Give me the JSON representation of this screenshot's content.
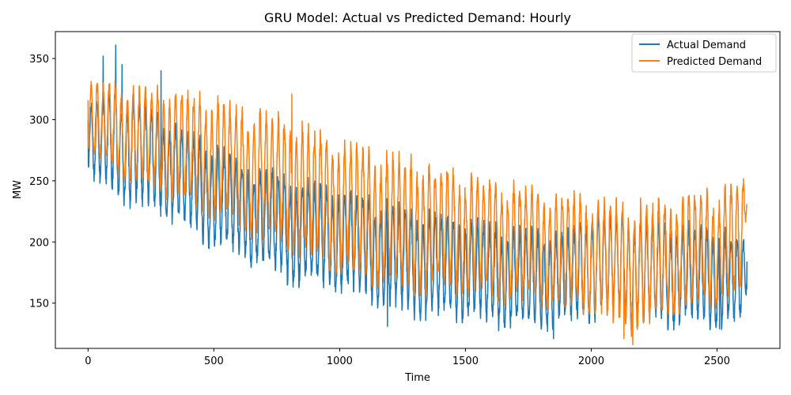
{
  "chart_data": {
    "type": "line",
    "title": "GRU Model: Actual vs Predicted Demand:  Hourly",
    "xlabel": "Time",
    "ylabel": "MW",
    "xlim": [
      -130,
      2750
    ],
    "ylim": [
      113,
      372
    ],
    "xticks": [
      0,
      500,
      1000,
      1500,
      2000,
      2500
    ],
    "yticks": [
      150,
      200,
      250,
      300,
      350
    ],
    "legend_position": "top-right",
    "series": [
      {
        "name": "Actual Demand",
        "color": "#1f77b4",
        "envelope": {
          "x": [
            0,
            100,
            200,
            300,
            400,
            500,
            600,
            700,
            800,
            900,
            1000,
            1100,
            1200,
            1300,
            1400,
            1500,
            1600,
            1700,
            1800,
            1900,
            2000,
            2100,
            2200,
            2300,
            2400,
            2500,
            2600,
            2619
          ],
          "hi": [
            314,
            330,
            318,
            305,
            290,
            282,
            268,
            262,
            255,
            250,
            245,
            238,
            232,
            228,
            225,
            222,
            216,
            212,
            210,
            208,
            228,
            226,
            222,
            218,
            215,
            212,
            205,
            200
          ],
          "lo": [
            252,
            238,
            228,
            222,
            210,
            196,
            188,
            178,
            168,
            162,
            160,
            155,
            145,
            140,
            138,
            138,
            132,
            130,
            130,
            132,
            138,
            140,
            132,
            132,
            132,
            132,
            132,
            160
          ]
        },
        "spikes": [
          {
            "x": 60,
            "y": 352
          },
          {
            "x": 110,
            "y": 361
          },
          {
            "x": 135,
            "y": 345
          },
          {
            "x": 290,
            "y": 340
          },
          {
            "x": 1190,
            "y": 131
          },
          {
            "x": 1850,
            "y": 121
          },
          {
            "x": 2510,
            "y": 129
          }
        ],
        "start": 300,
        "end": 184
      },
      {
        "name": "Predicted Demand",
        "color": "#ff7f0e",
        "envelope": {
          "x": [
            0,
            100,
            200,
            300,
            400,
            500,
            600,
            700,
            800,
            900,
            1000,
            1100,
            1200,
            1300,
            1400,
            1500,
            1600,
            1700,
            1800,
            1900,
            2000,
            2100,
            2200,
            2300,
            2400,
            2500,
            2600,
            2619
          ],
          "hi": [
            330,
            332,
            326,
            325,
            322,
            318,
            310,
            308,
            302,
            292,
            284,
            278,
            272,
            268,
            262,
            258,
            252,
            248,
            243,
            240,
            238,
            236,
            232,
            236,
            240,
            242,
            252,
            256
          ],
          "lo": [
            268,
            258,
            246,
            240,
            230,
            222,
            212,
            200,
            195,
            185,
            178,
            170,
            162,
            160,
            160,
            158,
            152,
            150,
            150,
            145,
            145,
            128,
            126,
            142,
            148,
            150,
            152,
            232
          ]
        },
        "spikes": [
          {
            "x": 810,
            "y": 321
          },
          {
            "x": 2130,
            "y": 121
          },
          {
            "x": 2165,
            "y": 116
          }
        ],
        "start": 316,
        "end": 231
      }
    ]
  }
}
